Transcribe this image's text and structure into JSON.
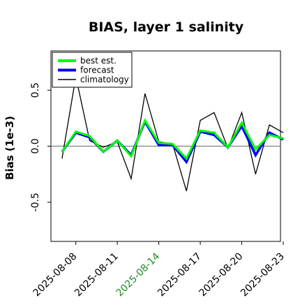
{
  "chart_data": {
    "type": "line",
    "title": "BIAS, layer 1 salinity",
    "ylabel": "Bias (1e-3)",
    "xlabel": "",
    "ylim": [
      -0.85,
      0.85
    ],
    "yticks": [
      {
        "value": -0.5,
        "label": "-0.5"
      },
      {
        "value": 0.0,
        "label": "0.0"
      },
      {
        "value": 0.5,
        "label": "0.5"
      }
    ],
    "xlim": [
      -0.8,
      15.8
    ],
    "xticks": [
      {
        "index": 1,
        "label": "2025-08-08",
        "color": "#000000"
      },
      {
        "index": 4,
        "label": "2025-08-11",
        "color": "#000000"
      },
      {
        "index": 7,
        "label": "2025-08-14",
        "color": "#228b22"
      },
      {
        "index": 10,
        "label": "2025-08-17",
        "color": "#000000"
      },
      {
        "index": 13,
        "label": "2025-08-20",
        "color": "#000000"
      },
      {
        "index": 16,
        "label": "2025-08-23",
        "color": "#000000"
      }
    ],
    "x": [
      "2025-08-07",
      "2025-08-08",
      "2025-08-09",
      "2025-08-10",
      "2025-08-11",
      "2025-08-12",
      "2025-08-13",
      "2025-08-14",
      "2025-08-15",
      "2025-08-16",
      "2025-08-17",
      "2025-08-18",
      "2025-08-19",
      "2025-08-20",
      "2025-08-21",
      "2025-08-22",
      "2025-08-23"
    ],
    "series": [
      {
        "name": "climatology",
        "color": "#000000",
        "values": [
          -0.11,
          0.62,
          0.05,
          -0.01,
          0.04,
          -0.29,
          0.47,
          0.04,
          0.02,
          -0.4,
          0.23,
          0.3,
          -0.02,
          0.3,
          -0.25,
          0.19,
          0.12
        ]
      },
      {
        "name": "forecast",
        "color": "#0000ff",
        "values": [
          -0.05,
          0.12,
          0.08,
          -0.05,
          0.05,
          -0.08,
          0.22,
          0.01,
          0.01,
          -0.14,
          0.13,
          0.1,
          -0.01,
          0.18,
          -0.08,
          0.12,
          0.06
        ]
      },
      {
        "name": "best est.",
        "color": "#00ff00",
        "values": [
          -0.05,
          0.13,
          0.09,
          -0.05,
          0.05,
          -0.09,
          0.23,
          0.03,
          0.02,
          -0.11,
          0.14,
          0.12,
          -0.01,
          0.21,
          -0.03,
          0.1,
          0.07
        ]
      }
    ],
    "hline": 0.0,
    "legend": {
      "placement": "top-left",
      "entries": [
        {
          "label": "best est.",
          "color": "#00ff00"
        },
        {
          "label": "forecast",
          "color": "#0000ff"
        },
        {
          "label": "climatology",
          "color": "#000000"
        }
      ]
    },
    "grid": false
  }
}
